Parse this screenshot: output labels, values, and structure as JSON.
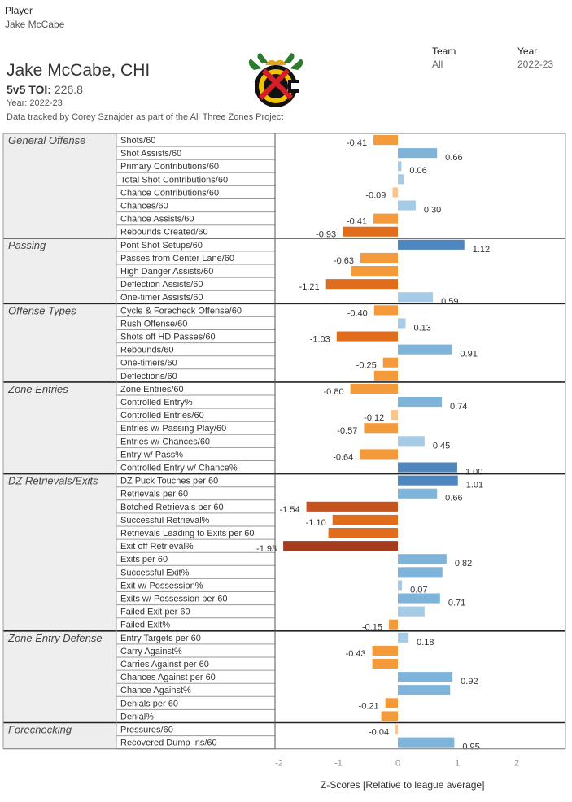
{
  "filters": {
    "player_label": "Player",
    "player_value": "Jake McCabe",
    "team_label": "Team",
    "team_value": "All",
    "year_label": "Year",
    "year_value": "2022-23"
  },
  "header": {
    "name": "Jake McCabe, CHI",
    "toi_label": "5v5 TOI:",
    "toi_value": "226.8",
    "year_line": "Year: 2022-23",
    "credit": "Data tracked by Corey Sznajder as part of the All Three Zones Project"
  },
  "logo": {
    "icon": "blackhawks-logo-icon"
  },
  "colors": {
    "pos_light": "#a6cbe6",
    "pos_mid": "#7eb3da",
    "pos_dark": "#4f86bd",
    "neg_light": "#f9c48d",
    "neg_mid": "#f59a3b",
    "neg_dark": "#e06d1c",
    "neg_darker": "#c65421",
    "neg_darkest": "#a83b1d"
  },
  "chart_data": {
    "type": "bar",
    "orientation": "horizontal",
    "xlabel": "Z-Scores [Relative to league average]",
    "xlim": [
      -2,
      2
    ],
    "xticks": [
      "-2",
      "-1",
      "0",
      "1",
      "2"
    ],
    "groups": [
      {
        "name": "General Offense",
        "metrics": [
          {
            "label": "Shots/60",
            "value": -0.41,
            "value_label": "-0.41"
          },
          {
            "label": "Shot Assists/60",
            "value": 0.66,
            "value_label": "0.66"
          },
          {
            "label": "Primary Contributions/60",
            "value": 0.06,
            "value_label": "0.06"
          },
          {
            "label": "Total Shot Contributions/60",
            "value": 0.1,
            "value_label": ""
          },
          {
            "label": "Chance Contributions/60",
            "value": -0.09,
            "value_label": "-0.09"
          },
          {
            "label": "Chances/60",
            "value": 0.3,
            "value_label": "0.30"
          },
          {
            "label": "Chance Assists/60",
            "value": -0.41,
            "value_label": "-0.41"
          },
          {
            "label": "Rebounds Created/60",
            "value": -0.93,
            "value_label": "-0.93"
          }
        ]
      },
      {
        "name": "Passing",
        "metrics": [
          {
            "label": "Pont Shot Setups/60",
            "value": 1.12,
            "value_label": "1.12"
          },
          {
            "label": "Passes from Center Lane/60",
            "value": -0.63,
            "value_label": "-0.63"
          },
          {
            "label": "High Danger Assists/60",
            "value": -0.78,
            "value_label": ""
          },
          {
            "label": "Deflection Assists/60",
            "value": -1.21,
            "value_label": "-1.21"
          },
          {
            "label": "One-timer Assists/60",
            "value": 0.59,
            "value_label": "0.59"
          }
        ]
      },
      {
        "name": "Offense Types",
        "metrics": [
          {
            "label": "Cycle & Forecheck Offense/60",
            "value": -0.4,
            "value_label": "-0.40"
          },
          {
            "label": "Rush Offense/60",
            "value": 0.13,
            "value_label": "0.13"
          },
          {
            "label": "Shots off HD Passes/60",
            "value": -1.03,
            "value_label": "-1.03"
          },
          {
            "label": "Rebounds/60",
            "value": 0.91,
            "value_label": "0.91"
          },
          {
            "label": "One-timers/60",
            "value": -0.25,
            "value_label": "-0.25"
          },
          {
            "label": "Deflections/60",
            "value": -0.4,
            "value_label": ""
          }
        ]
      },
      {
        "name": "Zone Entries",
        "metrics": [
          {
            "label": "Zone Entries/60",
            "value": -0.8,
            "value_label": "-0.80"
          },
          {
            "label": "Controlled Entry%",
            "value": 0.74,
            "value_label": "0.74"
          },
          {
            "label": "Controlled Entries/60",
            "value": -0.12,
            "value_label": "-0.12"
          },
          {
            "label": "Entries w/ Passing Play/60",
            "value": -0.57,
            "value_label": "-0.57"
          },
          {
            "label": "Entries w/ Chances/60",
            "value": 0.45,
            "value_label": "0.45"
          },
          {
            "label": "Entry w/ Pass%",
            "value": -0.64,
            "value_label": "-0.64"
          },
          {
            "label": "Controlled Entry w/ Chance%",
            "value": 1.0,
            "value_label": "1.00"
          }
        ]
      },
      {
        "name": "DZ Retrievals/Exits",
        "metrics": [
          {
            "label": "DZ Puck Touches per 60",
            "value": 1.01,
            "value_label": "1.01"
          },
          {
            "label": "Retrievals per 60",
            "value": 0.66,
            "value_label": "0.66"
          },
          {
            "label": "Botched Retrievals per 60",
            "value": -1.54,
            "value_label": "-1.54"
          },
          {
            "label": "Successful Retrieval%",
            "value": -1.1,
            "value_label": "-1.10"
          },
          {
            "label": "Retrievals Leading to Exits per 60",
            "value": -1.17,
            "value_label": ""
          },
          {
            "label": "Exit off Retrieval%",
            "value": -1.93,
            "value_label": "-1.93"
          },
          {
            "label": "Exits per 60",
            "value": 0.82,
            "value_label": "0.82"
          },
          {
            "label": "Successful Exit%",
            "value": 0.75,
            "value_label": ""
          },
          {
            "label": "Exit w/ Possession%",
            "value": 0.07,
            "value_label": "0.07"
          },
          {
            "label": "Exits w/ Possession per 60",
            "value": 0.71,
            "value_label": "0.71"
          },
          {
            "label": "Failed Exit per 60",
            "value": 0.45,
            "value_label": ""
          },
          {
            "label": "Failed Exit%",
            "value": -0.15,
            "value_label": "-0.15"
          }
        ]
      },
      {
        "name": "Zone Entry Defense",
        "metrics": [
          {
            "label": "Entry Targets per 60",
            "value": 0.18,
            "value_label": "0.18"
          },
          {
            "label": "Carry Against%",
            "value": -0.43,
            "value_label": "-0.43"
          },
          {
            "label": "Carries Against per 60",
            "value": -0.43,
            "value_label": ""
          },
          {
            "label": "Chances Against per 60",
            "value": 0.92,
            "value_label": "0.92"
          },
          {
            "label": "Chance Against%",
            "value": 0.88,
            "value_label": ""
          },
          {
            "label": "Denials per 60",
            "value": -0.21,
            "value_label": "-0.21"
          },
          {
            "label": "Denial%",
            "value": -0.28,
            "value_label": ""
          }
        ]
      },
      {
        "name": "Forechecking",
        "metrics": [
          {
            "label": "Pressures/60",
            "value": -0.04,
            "value_label": "-0.04"
          },
          {
            "label": "Recovered Dump-ins/60",
            "value": 0.95,
            "value_label": "0.95"
          }
        ]
      }
    ]
  }
}
